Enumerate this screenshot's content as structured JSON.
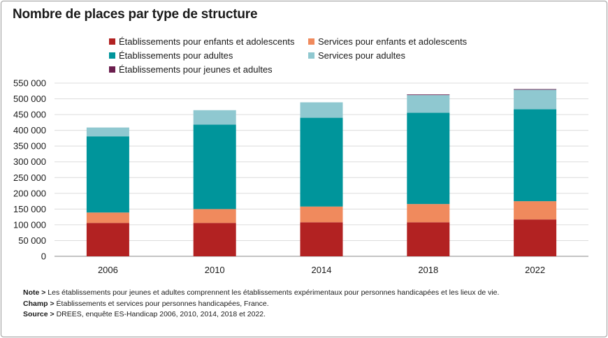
{
  "chart_data": {
    "type": "bar",
    "stacked": true,
    "title": "Nombre de places par type de structure",
    "categories": [
      "2006",
      "2010",
      "2014",
      "2018",
      "2022"
    ],
    "series": [
      {
        "name": "Établissements pour enfants et adolescents",
        "color": "#b22222",
        "values": [
          106000,
          106000,
          108000,
          108000,
          117000
        ]
      },
      {
        "name": "Services pour enfants et adolescents",
        "color": "#f08a5d",
        "values": [
          33000,
          44000,
          50000,
          58000,
          58000
        ]
      },
      {
        "name": "Établissements pour adultes",
        "color": "#00959b",
        "values": [
          242000,
          268000,
          282000,
          290000,
          292000
        ]
      },
      {
        "name": "Services pour adultes",
        "color": "#8fc8d0",
        "values": [
          28000,
          46000,
          49000,
          56000,
          62000
        ]
      },
      {
        "name": "Établissements pour jeunes et adultes",
        "color": "#6b1e4e",
        "values": [
          0,
          0,
          0,
          2000,
          2000
        ]
      }
    ],
    "ylim": [
      0,
      550000
    ],
    "yticks": [
      "0",
      "50 000",
      "100 000",
      "150 000",
      "200 000",
      "250 000",
      "300 000",
      "350 000",
      "400 000",
      "450 000",
      "500 000",
      "550 000"
    ],
    "grid": true,
    "legend_position": "top"
  },
  "notes": [
    {
      "label": "Note >",
      "text": " Les établissements pour jeunes et adultes comprennent les établissements expérimentaux pour personnes handicapées et les lieux de vie."
    },
    {
      "label": "Champ >",
      "text": " Établissements et services pour personnes handicapées, France."
    },
    {
      "label": "Source >",
      "text": " DREES, enquête ES-Handicap 2006, 2010, 2014, 2018 et 2022."
    }
  ]
}
